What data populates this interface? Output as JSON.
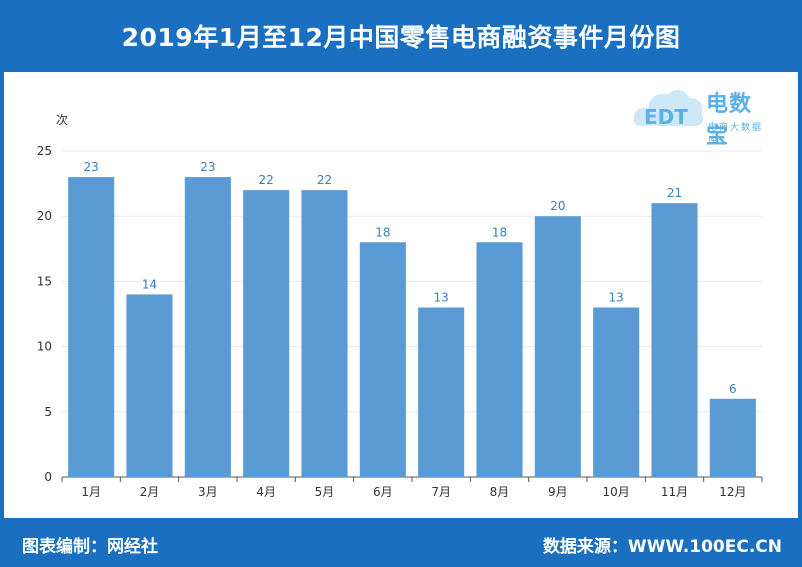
{
  "header": {
    "title": "2019年1月至12月中国零售电商融资事件月份图"
  },
  "footer": {
    "left": "图表编制：网经社",
    "right": "数据来源：WWW.100EC.CN"
  },
  "logo": {
    "brand": "电数宝",
    "sub": "电商大数据库",
    "mark": "EDT",
    "icon": "cloud-icon"
  },
  "colors": {
    "bar": "#5b9bd5",
    "accent": "#1a6fc0",
    "label": "#3a7fc0"
  },
  "chart_data": {
    "type": "bar",
    "title": "2019年1月至12月中国零售电商融资事件月份图",
    "ylabel": "次",
    "xlabel": "",
    "categories": [
      "1月",
      "2月",
      "3月",
      "4月",
      "5月",
      "6月",
      "7月",
      "8月",
      "9月",
      "10月",
      "11月",
      "12月"
    ],
    "values": [
      23,
      14,
      23,
      22,
      22,
      18,
      13,
      18,
      20,
      13,
      21,
      6
    ],
    "ylim": [
      0,
      25
    ],
    "yticks": [
      0,
      5,
      10,
      15,
      20,
      25
    ],
    "grid": true,
    "data_labels": true
  }
}
